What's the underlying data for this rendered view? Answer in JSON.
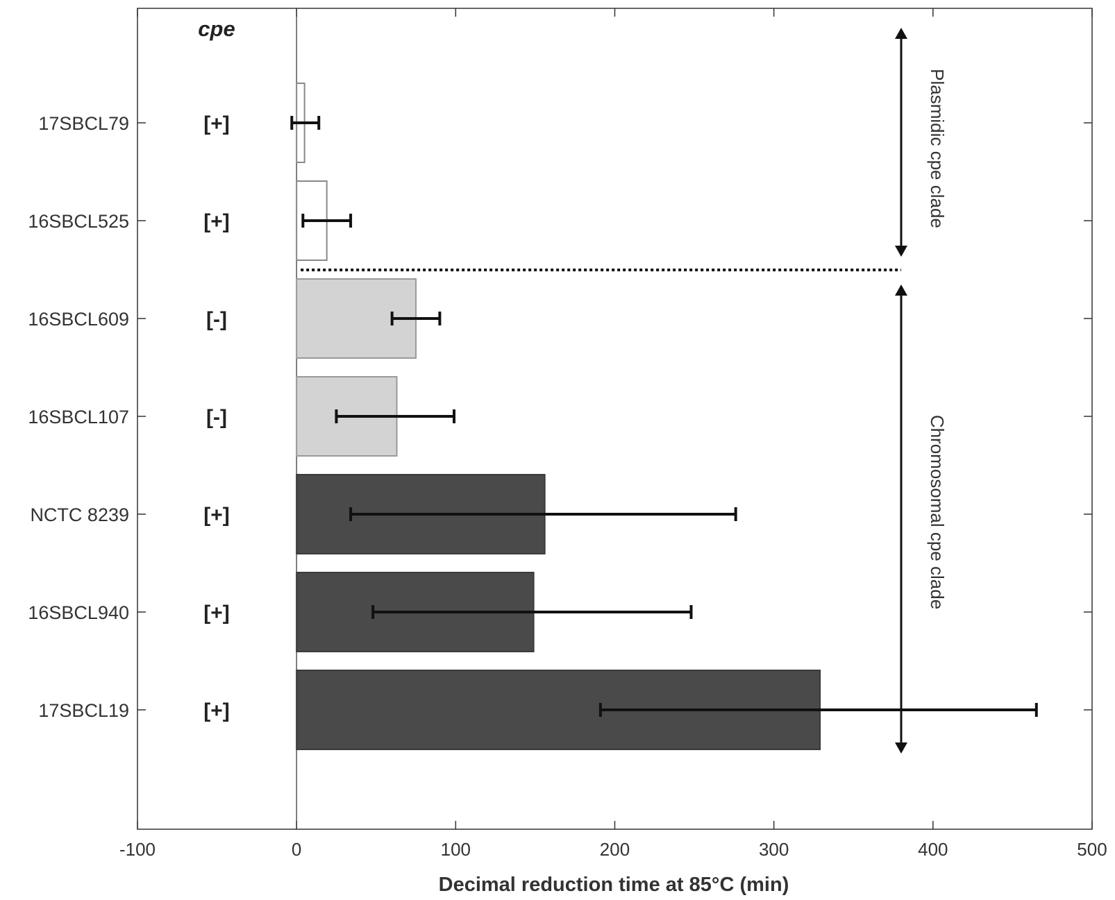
{
  "chart_data": {
    "type": "bar",
    "orientation": "horizontal",
    "xlabel": "Decimal reduction time at 85°C (min)",
    "xlim": [
      -100,
      500
    ],
    "xticks": [
      -100,
      0,
      100,
      200,
      300,
      400,
      500
    ],
    "cpe_header": "cpe",
    "categories": [
      "17SBCL79",
      "16SBCL525",
      "16SBCL609",
      "16SBCL107",
      "NCTC 8239",
      "16SBCL940",
      "17SBCL19"
    ],
    "cpe_status": [
      "[+]",
      "[+]",
      "[-]",
      "[-]",
      "[+]",
      "[+]",
      "[+]"
    ],
    "values": [
      5,
      19,
      75,
      63,
      156,
      149,
      329
    ],
    "error_low": [
      -3,
      4,
      60,
      25,
      34,
      48,
      191
    ],
    "error_high": [
      14,
      34,
      90,
      99,
      276,
      248,
      465
    ],
    "clades": [
      {
        "label": "Plasmidic cpe clade",
        "group": [
          0,
          1
        ]
      },
      {
        "label": "Chromosomal cpe clade",
        "group": [
          2,
          3,
          4,
          5,
          6
        ]
      }
    ],
    "colors": {
      "plasmidic_fill": "#ffffff",
      "plasmidic_edge": "#888888",
      "cpe_negative_fill": "#d3d3d3",
      "cpe_negative_edge": "#999999",
      "chromosomal_positive_fill": "#4a4a4a",
      "chromosomal_positive_edge": "#3a3a3a",
      "error_bar": "#111111"
    }
  }
}
